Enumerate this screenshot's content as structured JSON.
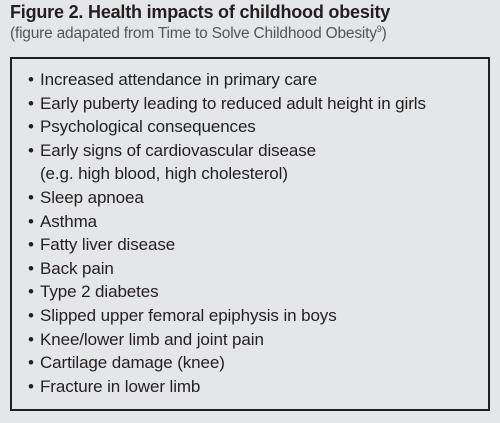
{
  "header": {
    "title": "Figure 2.  Health impacts of childhood obesity",
    "subtitle": {
      "before": "(figure adapated from Time to Solve Childhood Obesity",
      "ref": "9",
      "after": ")"
    }
  },
  "items": [
    [
      "Increased attendance in primary care"
    ],
    [
      "Early puberty leading to reduced adult height in girls"
    ],
    [
      "Psychological consequences"
    ],
    [
      "Early signs of cardiovascular disease",
      "(e.g. high blood, high cholesterol)"
    ],
    [
      "Sleep apnoea"
    ],
    [
      "Asthma"
    ],
    [
      "Fatty liver disease"
    ],
    [
      "Back pain"
    ],
    [
      "Type 2 diabetes"
    ],
    [
      "Slipped upper femoral epiphysis in boys"
    ],
    [
      "Knee/lower limb and joint pain"
    ],
    [
      "Cartilage damage (knee)"
    ],
    [
      "Fracture in lower limb"
    ]
  ]
}
